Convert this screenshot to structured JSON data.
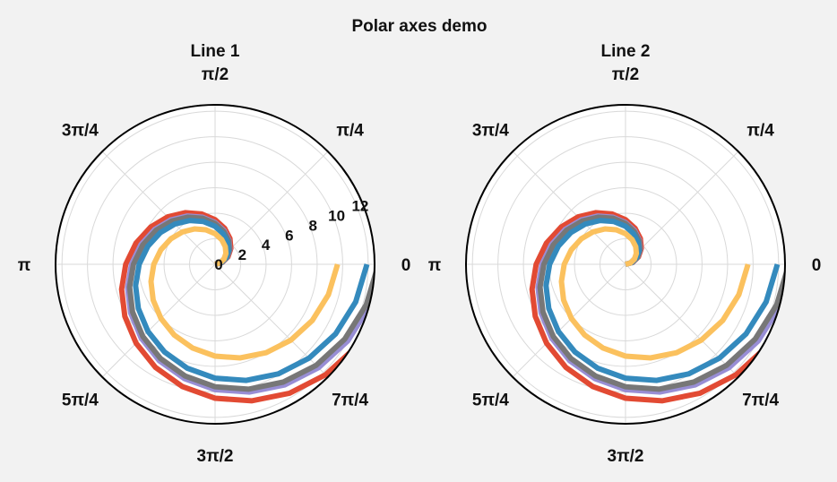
{
  "figure": {
    "suptitle": "Polar axes demo"
  },
  "chart_data": [
    {
      "type": "line",
      "projection": "polar",
      "title": "Line 1",
      "theta_tick_labels": [
        "0",
        "π/4",
        "π/2",
        "3π/4",
        "π",
        "5π/4",
        "3π/2",
        "7π/4"
      ],
      "r_tick_labels": [
        "0",
        "2",
        "4",
        "6",
        "8",
        "10",
        "12"
      ],
      "r_ticks": [
        0,
        2,
        4,
        6,
        8,
        10,
        12
      ],
      "rlim": [
        0,
        12.5
      ],
      "theta_range_rad": [
        0,
        6.2832
      ],
      "grid": true,
      "r_scale": 1.0,
      "series": [
        {
          "color": "#e24a33",
          "multiplier": 14.0
        },
        {
          "color": "#988ed5",
          "multiplier": 13.1
        },
        {
          "color": "#777777",
          "multiplier": 12.8
        },
        {
          "color": "#348abd",
          "multiplier": 11.9
        },
        {
          "color": "#fbc15e",
          "multiplier": 9.6
        }
      ]
    },
    {
      "type": "line",
      "projection": "polar",
      "title": "Line 2",
      "theta_tick_labels": [
        "0",
        "π/4",
        "π/2",
        "3π/4",
        "π",
        "5π/4",
        "3π/2",
        "7π/4"
      ],
      "r_tick_labels": [],
      "r_ticks": [
        0,
        2,
        4,
        6,
        8,
        10,
        12
      ],
      "rlim": [
        0,
        12.5
      ],
      "theta_range_rad": [
        0,
        6.2832
      ],
      "grid": true,
      "r_scale": 1.0,
      "series": [
        {
          "color": "#e24a33",
          "multiplier": 14.0
        },
        {
          "color": "#988ed5",
          "multiplier": 13.1
        },
        {
          "color": "#777777",
          "multiplier": 12.8
        },
        {
          "color": "#348abd",
          "multiplier": 11.9
        },
        {
          "color": "#fbc15e",
          "multiplier": 9.6
        }
      ]
    }
  ]
}
